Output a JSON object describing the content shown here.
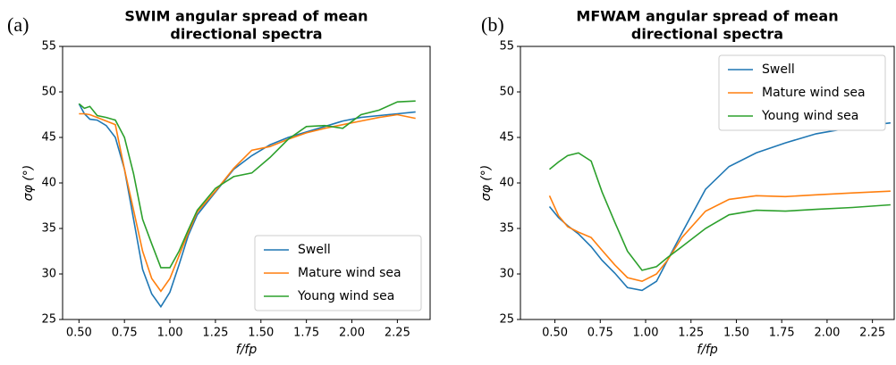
{
  "chart_data": [
    {
      "type": "line",
      "panel_label": "(a)",
      "title": [
        "SWIM angular spread of mean",
        "directional spectra"
      ],
      "xlabel": "f/fp",
      "ylabel": "σφ (°)",
      "legend": "lower right",
      "grid": false,
      "xlim": [
        0.41,
        2.43
      ],
      "ylim": [
        25,
        55
      ],
      "xticks": [
        {
          "value": 0.5,
          "label": "0.50"
        },
        {
          "value": 0.75,
          "label": "0.75"
        },
        {
          "value": 1.0,
          "label": "1.00"
        },
        {
          "value": 1.25,
          "label": "1.25"
        },
        {
          "value": 1.5,
          "label": "1.50"
        },
        {
          "value": 1.75,
          "label": "1.75"
        },
        {
          "value": 2.0,
          "label": "2.00"
        },
        {
          "value": 2.25,
          "label": "2.25"
        }
      ],
      "yticks": [
        25,
        30,
        35,
        40,
        45,
        50,
        55
      ],
      "x": [
        0.5,
        0.53,
        0.56,
        0.6,
        0.65,
        0.7,
        0.75,
        0.8,
        0.85,
        0.9,
        0.95,
        1.0,
        1.05,
        1.1,
        1.15,
        1.25,
        1.35,
        1.45,
        1.55,
        1.65,
        1.75,
        1.85,
        1.95,
        2.05,
        2.15,
        2.25,
        2.35
      ],
      "series": [
        {
          "name": "Swell",
          "color": "#1f77b4",
          "values": [
            48.7,
            47.6,
            47.0,
            46.9,
            46.3,
            45.0,
            41.5,
            36.0,
            30.5,
            27.8,
            26.4,
            28.0,
            31.0,
            34.2,
            36.5,
            39.0,
            41.5,
            43.0,
            44.2,
            45.0,
            45.6,
            46.2,
            46.8,
            47.2,
            47.4,
            47.6,
            47.8
          ]
        },
        {
          "name": "Mature wind sea",
          "color": "#ff7f0e",
          "values": [
            47.6,
            47.6,
            47.5,
            47.2,
            46.8,
            46.4,
            41.5,
            37.0,
            32.5,
            29.5,
            28.1,
            29.5,
            32.0,
            34.5,
            36.8,
            39.1,
            41.6,
            43.6,
            44.0,
            44.8,
            45.5,
            46.0,
            46.4,
            46.8,
            47.2,
            47.5,
            47.1
          ]
        },
        {
          "name": "Young wind sea",
          "color": "#2ca02c",
          "values": [
            48.7,
            48.2,
            48.4,
            47.4,
            47.2,
            46.9,
            45.0,
            41.0,
            36.0,
            33.3,
            30.7,
            30.7,
            32.5,
            34.8,
            37.0,
            39.4,
            40.7,
            41.1,
            42.8,
            44.8,
            46.2,
            46.3,
            46.0,
            47.5,
            48.0,
            48.9,
            49.0
          ]
        }
      ]
    },
    {
      "type": "line",
      "panel_label": "(b)",
      "title": [
        "MFWAM angular spread of mean",
        "directional spectra"
      ],
      "xlabel": "f/fp",
      "ylabel": "σφ (°)",
      "legend": "upper right",
      "grid": false,
      "xlim": [
        0.31,
        2.37
      ],
      "ylim": [
        25,
        55
      ],
      "xticks": [
        {
          "value": 0.5,
          "label": "0.50"
        },
        {
          "value": 0.75,
          "label": "0.75"
        },
        {
          "value": 1.0,
          "label": "1.00"
        },
        {
          "value": 1.25,
          "label": "1.25"
        },
        {
          "value": 1.5,
          "label": "1.50"
        },
        {
          "value": 1.75,
          "label": "1.75"
        },
        {
          "value": 2.0,
          "label": "2.00"
        },
        {
          "value": 2.25,
          "label": "2.25"
        }
      ],
      "yticks": [
        25,
        30,
        35,
        40,
        45,
        50,
        55
      ],
      "x": [
        0.47,
        0.52,
        0.57,
        0.63,
        0.7,
        0.76,
        0.83,
        0.9,
        0.98,
        1.06,
        1.12,
        1.2,
        1.33,
        1.46,
        1.61,
        1.77,
        1.94,
        2.14,
        2.35
      ],
      "series": [
        {
          "name": "Swell",
          "color": "#1f77b4",
          "values": [
            37.4,
            36.2,
            35.3,
            34.4,
            33.0,
            31.5,
            30.1,
            28.5,
            28.2,
            29.2,
            31.5,
            34.5,
            39.3,
            41.8,
            43.3,
            44.4,
            45.4,
            46.1,
            46.6
          ]
        },
        {
          "name": "Mature wind sea",
          "color": "#ff7f0e",
          "values": [
            38.6,
            36.4,
            35.2,
            34.6,
            34.0,
            32.6,
            31.0,
            29.6,
            29.2,
            30.0,
            31.5,
            34.0,
            36.9,
            38.2,
            38.6,
            38.5,
            38.7,
            38.9,
            39.1
          ]
        },
        {
          "name": "Young wind sea",
          "color": "#2ca02c",
          "values": [
            41.5,
            42.3,
            43.0,
            43.3,
            42.4,
            39.0,
            35.7,
            32.5,
            30.4,
            30.8,
            31.8,
            33.0,
            35.0,
            36.5,
            37.0,
            36.9,
            37.1,
            37.3,
            37.6
          ]
        }
      ]
    }
  ]
}
